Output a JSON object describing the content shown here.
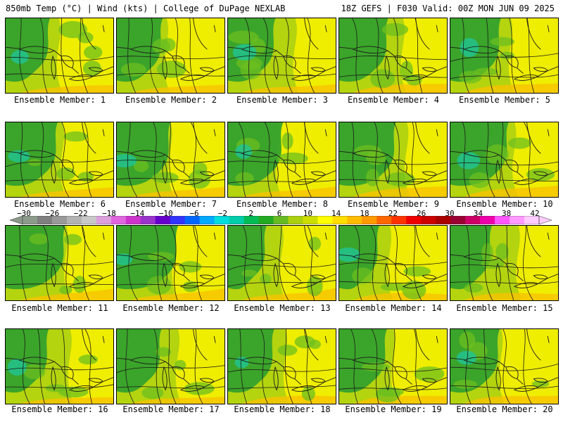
{
  "header": {
    "left": "850mb Temp (°C) | Wind (kts) | College of DuPage NEXLAB",
    "right": "18Z GEFS | F030 Valid: 00Z MON JUN 09 2025"
  },
  "members": [
    {
      "label": "Ensemble Member: 1"
    },
    {
      "label": "Ensemble Member: 2"
    },
    {
      "label": "Ensemble Member: 3"
    },
    {
      "label": "Ensemble Member: 4"
    },
    {
      "label": "Ensemble Member: 5"
    },
    {
      "label": "Ensemble Member: 6"
    },
    {
      "label": "Ensemble Member: 7"
    },
    {
      "label": "Ensemble Member: 8"
    },
    {
      "label": "Ensemble Member: 9"
    },
    {
      "label": "Ensemble Member: 10"
    },
    {
      "label": "Ensemble Member: 11"
    },
    {
      "label": "Ensemble Member: 12"
    },
    {
      "label": "Ensemble Member: 13"
    },
    {
      "label": "Ensemble Member: 14"
    },
    {
      "label": "Ensemble Member: 15"
    },
    {
      "label": "Ensemble Member: 16"
    },
    {
      "label": "Ensemble Member: 17"
    },
    {
      "label": "Ensemble Member: 18"
    },
    {
      "label": "Ensemble Member: 19"
    },
    {
      "label": "Ensemble Member: 20"
    }
  ],
  "legend": {
    "ticks": [
      "−30",
      "−26",
      "−22",
      "−18",
      "−14",
      "−10",
      "−6",
      "−2",
      "2",
      "6",
      "10",
      "14",
      "18",
      "22",
      "26",
      "30",
      "34",
      "38",
      "42"
    ],
    "colors": [
      "#8c9a8c",
      "#7f7f7f",
      "#999999",
      "#b3b3b3",
      "#c8c8c8",
      "#dda0dd",
      "#e066e0",
      "#cc33cc",
      "#9933cc",
      "#6600cc",
      "#3333ff",
      "#0066ff",
      "#00aaff",
      "#00dddd",
      "#00ccaa",
      "#00bb55",
      "#22aa22",
      "#66bb22",
      "#aad010",
      "#ccdd00",
      "#ffff00",
      "#ffdd00",
      "#ffbb00",
      "#ff9900",
      "#ff6600",
      "#ff3300",
      "#ee0000",
      "#cc0000",
      "#aa0000",
      "#990033",
      "#cc0066",
      "#ee00aa",
      "#ff55ff",
      "#ff99ff",
      "#ffccff"
    ]
  },
  "map_colors": {
    "base": "#b3d40f",
    "green": "#2e9e2e",
    "light_green": "#6cbf1f",
    "teal": "#22c38e",
    "yellow": "#f2ee00",
    "orange": "#f7c200",
    "lines": "#1a1a1a"
  }
}
